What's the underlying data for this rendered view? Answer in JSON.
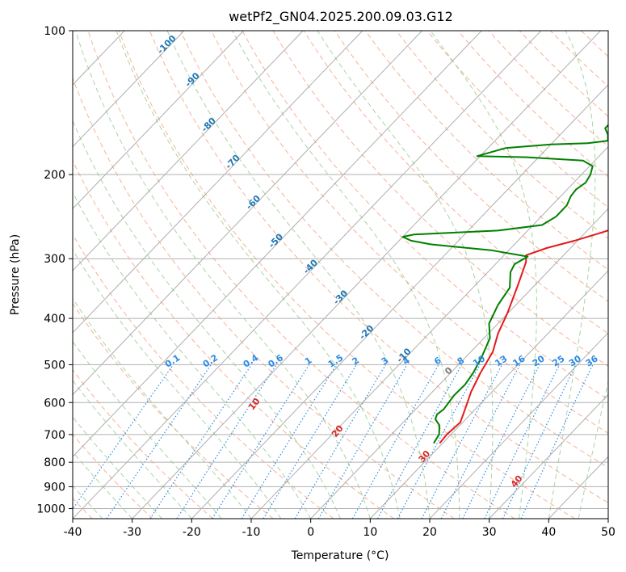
{
  "chart_data": {
    "type": "line",
    "diagram": "skew-T log-p",
    "title": "wetPf2_GN04.2025.200.09.03.G12",
    "xlabel": "Temperature (°C)",
    "ylabel": "Pressure (hPa)",
    "xlim": [
      -40,
      50
    ],
    "ylim": [
      1050,
      100
    ],
    "y_scale": "log",
    "x_ticks": [
      -40,
      -30,
      -20,
      -10,
      0,
      10,
      20,
      30,
      40,
      50
    ],
    "y_ticks": [
      1000,
      900,
      800,
      700,
      600,
      500,
      400,
      300,
      200,
      100
    ],
    "grid": true,
    "series": [
      {
        "color": "#e31a1c",
        "points": [
          [
            9.5,
            730
          ],
          [
            9.3,
            700
          ],
          [
            9.6,
            660
          ],
          [
            8.3,
            620
          ],
          [
            6.5,
            570
          ],
          [
            5.0,
            520
          ],
          [
            3.7,
            470
          ],
          [
            1.6,
            430
          ],
          [
            -0.1,
            390
          ],
          [
            -2.9,
            340
          ],
          [
            -5.2,
            305
          ],
          [
            -6.3,
            295
          ],
          [
            -4.0,
            285
          ],
          [
            -0.5,
            275
          ],
          [
            2.6,
            265
          ],
          [
            5.5,
            255
          ],
          [
            9.5,
            240
          ],
          [
            12.5,
            225
          ],
          [
            15.0,
            212
          ],
          [
            17.0,
            200
          ],
          [
            17.6,
            190
          ],
          [
            18.8,
            180
          ],
          [
            20.5,
            170
          ],
          [
            22.0,
            160
          ],
          [
            22.6,
            150
          ],
          [
            24.0,
            140
          ],
          [
            26.0,
            130
          ],
          [
            28.0,
            120
          ],
          [
            30.0,
            110
          ],
          [
            32.0,
            100
          ]
        ]
      },
      {
        "color": "#008000",
        "points": [
          [
            8.5,
            730
          ],
          [
            8.0,
            700
          ],
          [
            6.6,
            670
          ],
          [
            4.9,
            650
          ],
          [
            4.4,
            635
          ],
          [
            4.7,
            620
          ],
          [
            4.2,
            580
          ],
          [
            4.3,
            550
          ],
          [
            3.8,
            520
          ],
          [
            2.6,
            480
          ],
          [
            1.0,
            440
          ],
          [
            -1.5,
            410
          ],
          [
            -3.0,
            375
          ],
          [
            -3.8,
            345
          ],
          [
            -6.2,
            320
          ],
          [
            -6.8,
            308
          ],
          [
            -5.8,
            297
          ],
          [
            -13.0,
            288
          ],
          [
            -24.0,
            280
          ],
          [
            -28.0,
            275
          ],
          [
            -30.0,
            270
          ],
          [
            -28.5,
            267
          ],
          [
            -15.0,
            262
          ],
          [
            -8.5,
            255
          ],
          [
            -7.5,
            245
          ],
          [
            -7.5,
            232
          ],
          [
            -8.3,
            222
          ],
          [
            -8.5,
            215
          ],
          [
            -8.0,
            208
          ],
          [
            -8.5,
            200
          ],
          [
            -9.5,
            192
          ],
          [
            -12.0,
            187
          ],
          [
            -22.0,
            184
          ],
          [
            -30.5,
            183
          ],
          [
            -27.0,
            176
          ],
          [
            -20.0,
            173
          ],
          [
            -14.0,
            172
          ],
          [
            -11.0,
            170
          ],
          [
            -12.0,
            165
          ],
          [
            -13.5,
            160
          ],
          [
            -13.5,
            150
          ],
          [
            -12.0,
            140
          ],
          [
            -9.8,
            130
          ],
          [
            -7.8,
            120
          ],
          [
            -5.3,
            110
          ],
          [
            -3.0,
            100
          ]
        ]
      }
    ],
    "isotherms": [
      -100,
      -90,
      -80,
      -70,
      -60,
      -50,
      -40,
      -30,
      -20,
      -10,
      0,
      10,
      20,
      30,
      40,
      50
    ],
    "mixing_ratio_labels": [
      "0.1",
      "0.2",
      "0.4",
      "0.6",
      "1",
      "1.5",
      "2",
      "3",
      "4",
      "6",
      "8",
      "10",
      "13",
      "16",
      "20",
      "25",
      "30",
      "36"
    ],
    "mixing_ratio_values": [
      0.1,
      0.2,
      0.4,
      0.6,
      1,
      1.5,
      2,
      3,
      4,
      6,
      8,
      10,
      13,
      16,
      20,
      25,
      30,
      36
    ],
    "moist_adiabat_labels": [
      "-100",
      "-90",
      "-80",
      "-70",
      "-60",
      "-50",
      "-40",
      "-30",
      "-20",
      "-10",
      "0"
    ],
    "moist_adiabat_values": [
      -100,
      -90,
      -80,
      -70,
      -60,
      -50,
      -40,
      -30,
      -20,
      -10,
      0
    ],
    "dry_adiabat_labels": [
      "10",
      "20",
      "30",
      "40"
    ],
    "dry_adiabat_values": [
      10,
      20,
      30,
      40
    ],
    "colors": {
      "temperature": "#e31a1c",
      "dewpoint": "#008000",
      "grid": "#b0b0b0",
      "isotherm": "#9a9a9a",
      "dry_adiabat": "#f4a582",
      "moist_adiabat": "#9ecf9a",
      "mixing_ratio": "#2b8be6"
    }
  }
}
